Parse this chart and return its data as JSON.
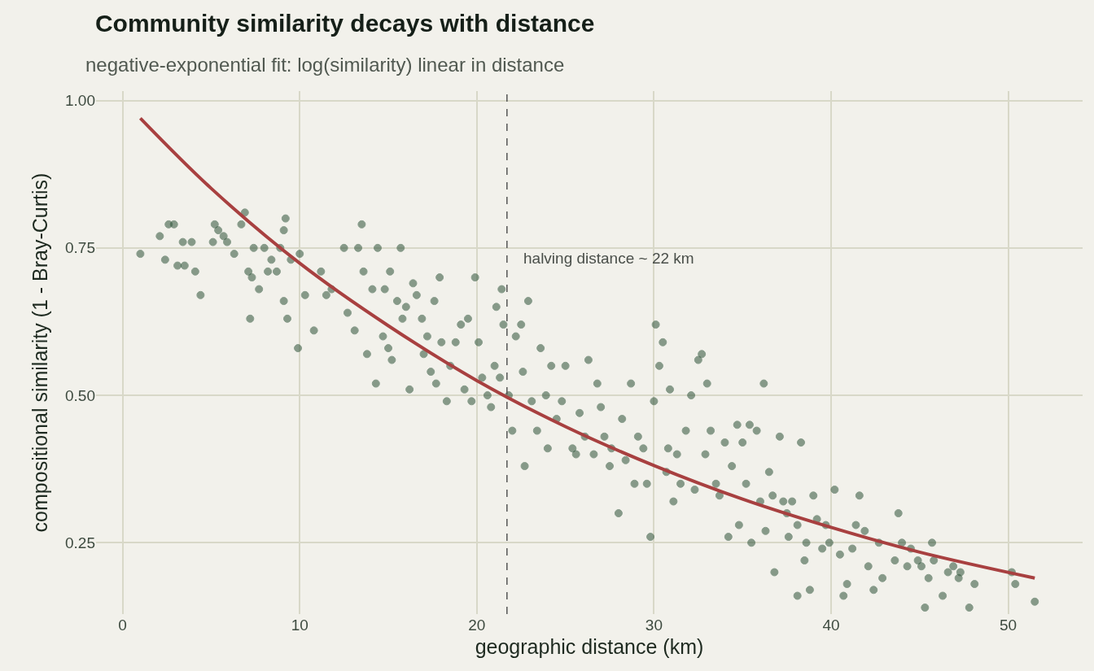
{
  "chart_data": {
    "type": "scatter",
    "title": "Community similarity decays with distance",
    "subtitle": "negative-exponential fit: log(similarity) linear in distance",
    "xlabel": "geographic distance (km)",
    "ylabel": "compositional similarity (1 - Bray-Curtis)",
    "xlim": [
      -1.5,
      54.2
    ],
    "ylim": [
      0.129,
      1.016
    ],
    "xticks": [
      0,
      10,
      20,
      30,
      40,
      50
    ],
    "yticks": [
      {
        "value": 0.25,
        "label": "0.25"
      },
      {
        "value": 0.5,
        "label": "0.50"
      },
      {
        "value": 0.75,
        "label": "0.75"
      },
      {
        "value": 1,
        "label": "1.00"
      }
    ],
    "grid": true,
    "marker": "circle",
    "ref_lines": [
      {
        "axis": "x",
        "value": 21.7,
        "label": "halving distance ~ 22 km",
        "color": "#555555",
        "line_style": "dashed"
      }
    ],
    "series": [
      {
        "color": "#2e5339",
        "x": [
          1.0,
          2.1,
          2.4,
          2.6,
          2.9,
          3.1,
          3.4,
          3.5,
          3.9,
          4.1,
          4.4,
          5.1,
          5.2,
          5.4,
          5.7,
          5.9,
          6.3,
          6.7,
          6.9,
          7.1,
          7.2,
          7.3,
          7.4,
          7.7,
          8.0,
          8.2,
          8.4,
          8.7,
          8.9,
          9.1,
          9.1,
          9.2,
          9.3,
          9.5,
          9.9,
          10.0,
          10.3,
          10.8,
          11.2,
          11.5,
          11.8,
          12.5,
          12.7,
          13.1,
          13.3,
          13.5,
          13.6,
          13.8,
          14.1,
          14.3,
          14.4,
          14.7,
          14.8,
          15.0,
          15.1,
          15.2,
          15.5,
          15.7,
          15.8,
          16.0,
          16.2,
          16.4,
          16.6,
          16.9,
          17.0,
          17.2,
          17.4,
          17.6,
          17.7,
          17.9,
          18.0,
          18.3,
          18.5,
          18.8,
          19.1,
          19.3,
          19.5,
          19.7,
          19.9,
          20.1,
          20.3,
          20.6,
          20.8,
          21.0,
          21.1,
          21.3,
          21.4,
          21.5,
          21.8,
          22.0,
          22.2,
          22.5,
          22.6,
          22.7,
          22.9,
          23.1,
          23.4,
          23.6,
          23.9,
          24.0,
          24.2,
          24.5,
          24.8,
          25.0,
          25.4,
          25.6,
          25.8,
          26.1,
          26.3,
          26.6,
          26.8,
          27.0,
          27.2,
          27.5,
          27.6,
          28.0,
          28.2,
          28.4,
          28.7,
          28.9,
          29.1,
          29.4,
          29.6,
          29.8,
          30.0,
          30.1,
          30.3,
          30.5,
          30.7,
          30.8,
          30.9,
          31.1,
          31.3,
          31.5,
          31.8,
          32.1,
          32.3,
          32.5,
          32.7,
          32.9,
          33.0,
          33.2,
          33.5,
          33.7,
          34.0,
          34.2,
          34.4,
          34.7,
          34.8,
          35.0,
          35.2,
          35.4,
          35.5,
          35.8,
          36.0,
          36.2,
          36.3,
          36.5,
          36.7,
          36.8,
          37.1,
          37.3,
          37.5,
          37.6,
          37.8,
          38.1,
          38.1,
          38.3,
          38.5,
          38.6,
          38.8,
          39.0,
          39.2,
          39.5,
          39.7,
          39.9,
          40.2,
          40.5,
          40.7,
          40.9,
          41.2,
          41.4,
          41.6,
          41.9,
          42.1,
          42.4,
          42.7,
          42.9,
          43.6,
          43.8,
          44.0,
          44.3,
          44.5,
          44.9,
          45.1,
          45.3,
          45.5,
          45.7,
          45.8,
          46.3,
          46.6,
          46.9,
          47.2,
          47.3,
          47.8,
          48.1,
          50.2,
          50.4,
          51.5
        ],
        "values": [
          0.74,
          0.77,
          0.73,
          0.79,
          0.79,
          0.72,
          0.76,
          0.72,
          0.76,
          0.71,
          0.67,
          0.76,
          0.79,
          0.78,
          0.77,
          0.76,
          0.74,
          0.79,
          0.81,
          0.71,
          0.63,
          0.7,
          0.75,
          0.68,
          0.75,
          0.71,
          0.73,
          0.71,
          0.75,
          0.66,
          0.78,
          0.8,
          0.63,
          0.73,
          0.58,
          0.74,
          0.67,
          0.61,
          0.71,
          0.67,
          0.68,
          0.75,
          0.64,
          0.61,
          0.75,
          0.79,
          0.71,
          0.57,
          0.68,
          0.52,
          0.75,
          0.6,
          0.68,
          0.58,
          0.71,
          0.56,
          0.66,
          0.75,
          0.63,
          0.65,
          0.51,
          0.69,
          0.67,
          0.63,
          0.57,
          0.6,
          0.54,
          0.66,
          0.52,
          0.7,
          0.59,
          0.49,
          0.55,
          0.59,
          0.62,
          0.51,
          0.63,
          0.49,
          0.7,
          0.59,
          0.53,
          0.5,
          0.48,
          0.55,
          0.65,
          0.53,
          0.68,
          0.62,
          0.5,
          0.44,
          0.6,
          0.62,
          0.54,
          0.38,
          0.66,
          0.49,
          0.44,
          0.58,
          0.5,
          0.41,
          0.55,
          0.46,
          0.49,
          0.55,
          0.41,
          0.4,
          0.47,
          0.43,
          0.56,
          0.4,
          0.52,
          0.48,
          0.43,
          0.38,
          0.41,
          0.3,
          0.46,
          0.39,
          0.52,
          0.35,
          0.43,
          0.41,
          0.35,
          0.26,
          0.49,
          0.62,
          0.55,
          0.59,
          0.37,
          0.41,
          0.51,
          0.32,
          0.4,
          0.35,
          0.44,
          0.5,
          0.34,
          0.56,
          0.57,
          0.4,
          0.52,
          0.44,
          0.35,
          0.33,
          0.42,
          0.26,
          0.38,
          0.45,
          0.28,
          0.42,
          0.35,
          0.45,
          0.25,
          0.44,
          0.32,
          0.52,
          0.27,
          0.37,
          0.33,
          0.2,
          0.43,
          0.32,
          0.3,
          0.26,
          0.32,
          0.28,
          0.16,
          0.42,
          0.22,
          0.25,
          0.17,
          0.33,
          0.29,
          0.24,
          0.28,
          0.25,
          0.34,
          0.23,
          0.16,
          0.18,
          0.24,
          0.28,
          0.33,
          0.27,
          0.21,
          0.17,
          0.25,
          0.19,
          0.22,
          0.3,
          0.25,
          0.21,
          0.24,
          0.22,
          0.21,
          0.14,
          0.19,
          0.25,
          0.22,
          0.16,
          0.2,
          0.21,
          0.19,
          0.2,
          0.14,
          0.18,
          0.2,
          0.18,
          0.15
        ]
      },
      {
        "type": "line",
        "color": "#a84040",
        "marker": "none",
        "x": [
          1,
          5,
          10,
          15,
          20,
          25,
          30,
          35,
          40,
          45,
          51.5
        ],
        "values": [
          0.97,
          0.851,
          0.724,
          0.618,
          0.525,
          0.447,
          0.381,
          0.324,
          0.276,
          0.234,
          0.19
        ]
      }
    ]
  }
}
